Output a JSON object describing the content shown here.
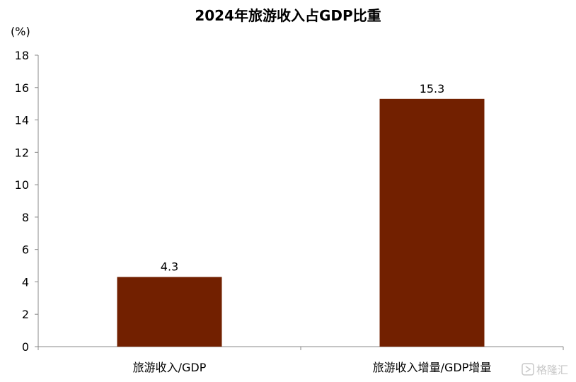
{
  "chart_data": {
    "type": "bar",
    "title": "2024年旅游收入占GDP比重",
    "ylabel": "(%)",
    "xlabel": "",
    "categories": [
      "旅游收入/GDP",
      "旅游收入增量/GDP增量"
    ],
    "values": [
      4.3,
      15.3
    ],
    "data_labels": [
      "4.3",
      "15.3"
    ],
    "ylim": [
      0,
      18
    ],
    "yticks": [
      0,
      2,
      4,
      6,
      8,
      10,
      12,
      14,
      16,
      18
    ],
    "grid": false,
    "legend": "none",
    "bar_color": "#722000"
  },
  "watermark": {
    "text": "格隆汇",
    "icon": "watermark-logo-icon"
  }
}
